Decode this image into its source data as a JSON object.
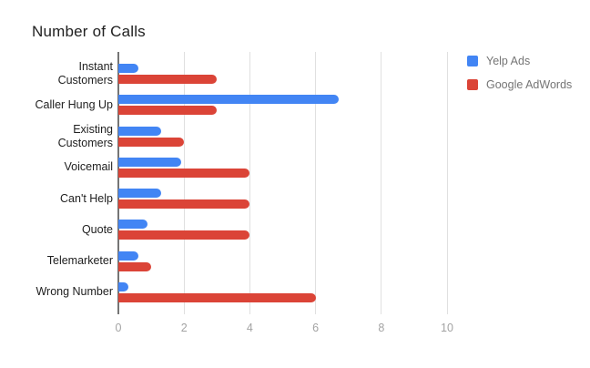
{
  "title": "Number of Calls",
  "chart_data": {
    "type": "bar",
    "orientation": "horizontal",
    "title": "Number of Calls",
    "categories": [
      "Instant Customers",
      "Caller Hung Up",
      "Existing Customers",
      "Voicemail",
      "Can't Help",
      "Quote",
      "Telemarketer",
      "Wrong Number"
    ],
    "series": [
      {
        "name": "Yelp Ads",
        "color": "#4285f4",
        "values": [
          0.6,
          6.7,
          1.3,
          1.9,
          1.3,
          0.9,
          0.6,
          0.3
        ]
      },
      {
        "name": "Google AdWords",
        "color": "#db4437",
        "values": [
          3,
          3,
          2,
          4,
          4,
          4,
          1,
          6
        ]
      }
    ],
    "x_ticks": [
      "0",
      "2",
      "4",
      "6",
      "8",
      "10"
    ],
    "xlim": [
      0,
      10
    ],
    "grid": true,
    "legend_position": "top-right",
    "xlabel": "",
    "ylabel": ""
  },
  "colors": {
    "background": "#ffffff",
    "title_text": "#212121",
    "category_text": "#212121",
    "tick_text": "#a3a3a3",
    "legend_text": "#757575",
    "gridline": "#e0e0e0",
    "axis_line": "#757575"
  }
}
